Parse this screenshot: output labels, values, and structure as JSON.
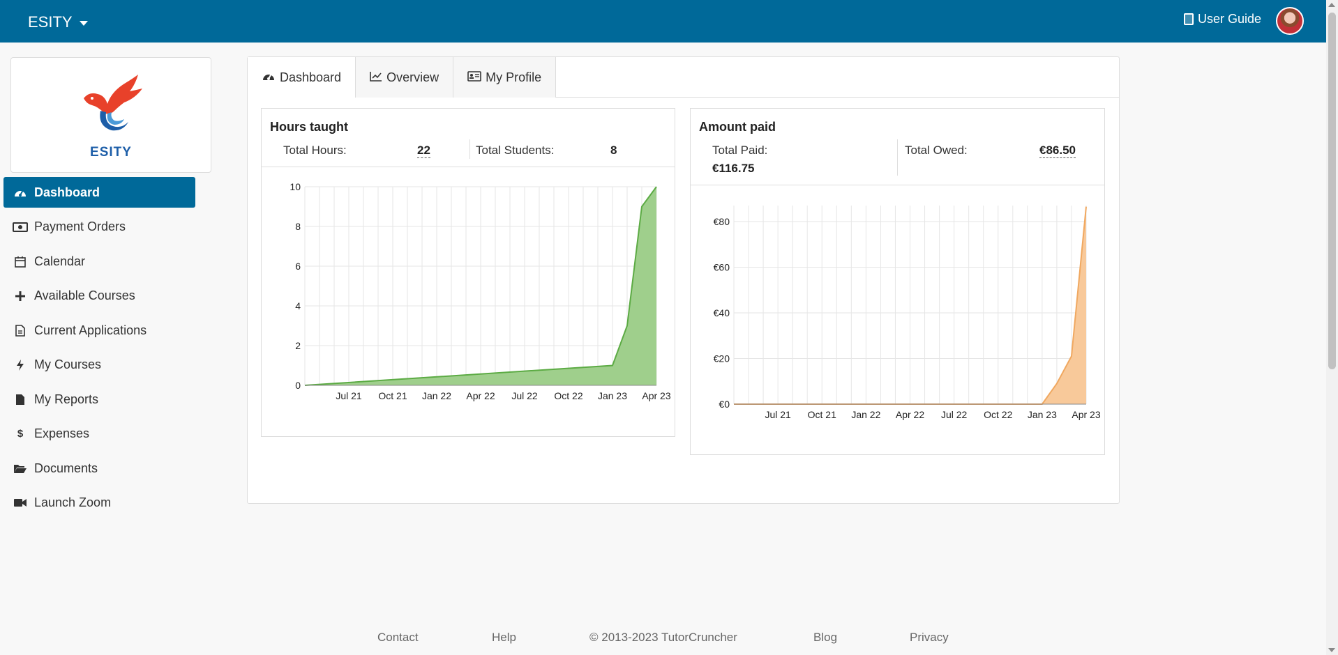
{
  "topbar": {
    "brand": "ESITY",
    "user_guide": "User Guide",
    "accent": "#006999"
  },
  "logo": {
    "text": "ESITY"
  },
  "nav": {
    "items": [
      {
        "label": "Dashboard",
        "icon": "gauge-icon",
        "active": true
      },
      {
        "label": "Payment Orders",
        "icon": "money-icon"
      },
      {
        "label": "Calendar",
        "icon": "calendar-icon"
      },
      {
        "label": "Available Courses",
        "icon": "plus-icon"
      },
      {
        "label": "Current Applications",
        "icon": "file-icon"
      },
      {
        "label": "My Courses",
        "icon": "bolt-icon"
      },
      {
        "label": "My Reports",
        "icon": "file-filled-icon"
      },
      {
        "label": "Expenses",
        "icon": "dollar-icon"
      },
      {
        "label": "Documents",
        "icon": "folder-open-icon"
      },
      {
        "label": "Launch Zoom",
        "icon": "video-icon"
      }
    ]
  },
  "tabs": [
    {
      "label": "Dashboard",
      "icon": "gauge-icon",
      "active": true
    },
    {
      "label": "Overview",
      "icon": "line-chart-icon"
    },
    {
      "label": "My Profile",
      "icon": "id-card-icon"
    }
  ],
  "hours_panel": {
    "title": "Hours taught",
    "total_hours_label": "Total Hours:",
    "total_hours_value": "22",
    "total_students_label": "Total Students:",
    "total_students_value": "8"
  },
  "amount_panel": {
    "title": "Amount paid",
    "total_paid_label": "Total Paid:",
    "total_paid_value": "€116.75",
    "total_owed_label": "Total Owed:",
    "total_owed_value": "€86.50"
  },
  "chart_data": [
    {
      "type": "area",
      "x_tick_labels": [
        "Jul 21",
        "Oct 21",
        "Jan 22",
        "Apr 22",
        "Jul 22",
        "Oct 22",
        "Jan 23",
        "Apr 23"
      ],
      "y_tick_labels": [
        "0",
        "2",
        "4",
        "6",
        "8",
        "10"
      ],
      "ylim": [
        0,
        10
      ],
      "color": "#5cab44",
      "fill": "#9fcf8c",
      "x_months": [
        0,
        21,
        22,
        23,
        24
      ],
      "y": [
        0,
        1,
        3,
        9,
        10
      ],
      "x_range_months": [
        0,
        24
      ]
    },
    {
      "type": "area",
      "x_tick_labels": [
        "Jul 21",
        "Oct 21",
        "Jan 22",
        "Apr 22",
        "Jul 22",
        "Oct 22",
        "Jan 23",
        "Apr 23"
      ],
      "y_tick_labels": [
        "€0",
        "€20",
        "€40",
        "€60",
        "€80"
      ],
      "ylim": [
        0,
        87
      ],
      "color": "#f0a860",
      "fill": "#f8c99a",
      "x_months": [
        0,
        21,
        22,
        23,
        24
      ],
      "y": [
        0,
        0,
        9,
        21,
        86.5
      ],
      "x_range_months": [
        0,
        24
      ]
    }
  ],
  "footer": {
    "contact": "Contact",
    "help": "Help",
    "copyright": "© 2013-2023 TutorCruncher",
    "blog": "Blog",
    "privacy": "Privacy"
  }
}
